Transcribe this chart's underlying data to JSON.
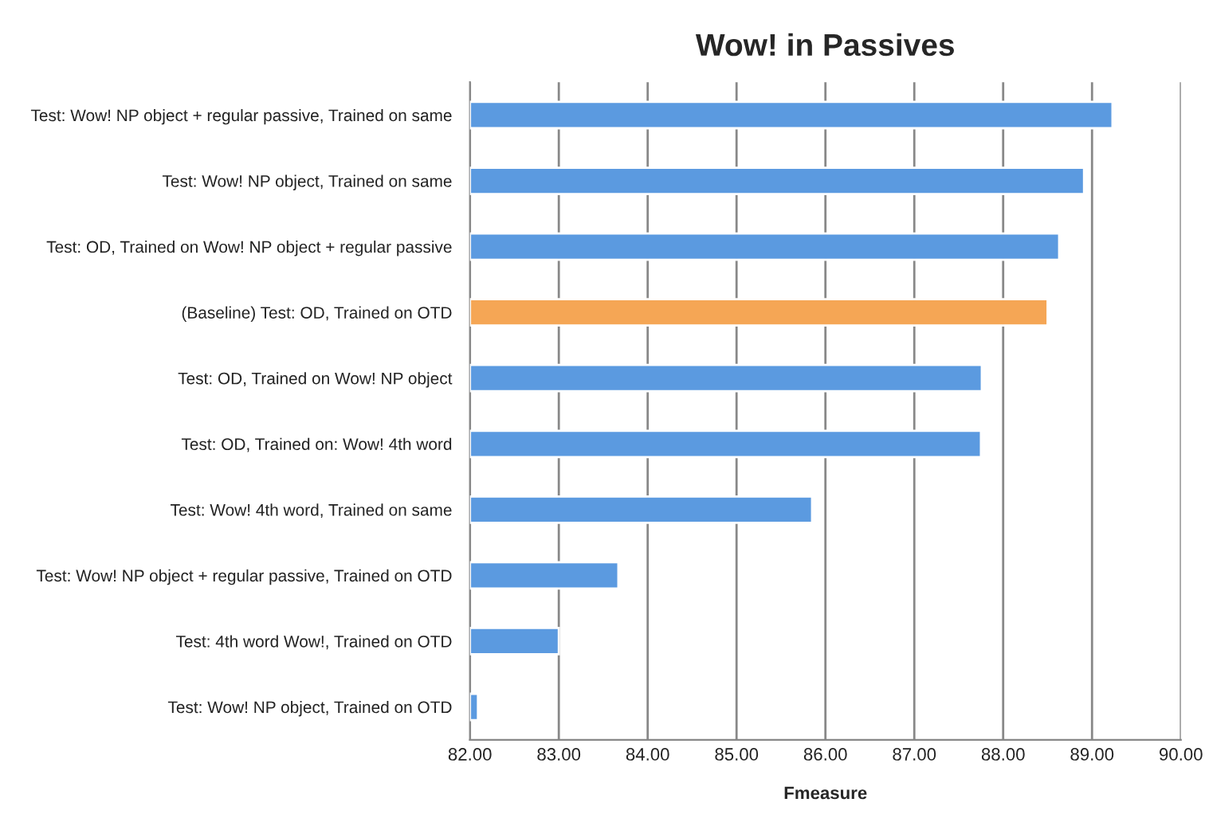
{
  "chart_data": {
    "type": "bar",
    "orientation": "horizontal",
    "title": "Wow! in Passives",
    "xlabel": "Fmeasure",
    "categories": [
      "Test: Wow! NP object + regular passive, Trained on same",
      "Test: Wow! NP object, Trained on same",
      "Test: OD, Trained on Wow! NP object + regular passive",
      "(Baseline) Test: OD, Trained on OTD",
      "Test: OD, Trained on Wow! NP object",
      "Test: OD, Trained on: Wow! 4th word",
      "Test: Wow! 4th word, Trained on same",
      "Test: Wow! NP object + regular passive, Trained on OTD",
      "Test: 4th word Wow!, Trained on OTD",
      "Test: Wow! NP object, Trained on OTD"
    ],
    "values": [
      89.23,
      88.91,
      88.63,
      88.5,
      87.76,
      87.75,
      85.85,
      83.67,
      83.0,
      82.09
    ],
    "colors": [
      "#5b9ae0",
      "#5b9ae0",
      "#5b9ae0",
      "#f5a655",
      "#5b9ae0",
      "#5b9ae0",
      "#5b9ae0",
      "#5b9ae0",
      "#5b9ae0",
      "#5b9ae0"
    ],
    "xlim": [
      82,
      90
    ],
    "xticks": [
      {
        "value": 82,
        "label": "82.00"
      },
      {
        "value": 83,
        "label": "83.00"
      },
      {
        "value": 84,
        "label": "84.00"
      },
      {
        "value": 85,
        "label": "85.00"
      },
      {
        "value": 86,
        "label": "86.00"
      },
      {
        "value": 87,
        "label": "87.00"
      },
      {
        "value": 88,
        "label": "88.00"
      },
      {
        "value": 89,
        "label": "89.00"
      },
      {
        "value": 90,
        "label": "90.00"
      }
    ],
    "grid": "x",
    "legend": false
  }
}
